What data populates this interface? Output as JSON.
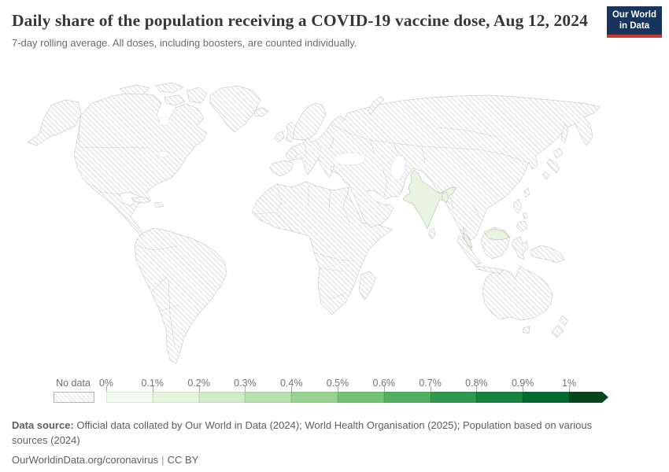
{
  "header": {
    "title": "Daily share of the population receiving a COVID-19 vaccine dose, Aug 12, 2024",
    "subtitle": "7-day rolling average. All doses, including boosters, are counted individually.",
    "logo": {
      "line1": "Our World",
      "line2": "in Data",
      "bg_color": "#17355c",
      "accent_color": "#c73a31"
    }
  },
  "map": {
    "no_data_style": "diagonal-hatch",
    "hatch_line_color": "#e0e0e0",
    "border_color": "#cdcdcd",
    "highlight_fill": "#e9f3e2",
    "highlighted_countries": [
      "India",
      "Bangladesh",
      "Malaysia"
    ]
  },
  "legend": {
    "no_data_label": "No data",
    "tick_labels": [
      "0%",
      "0.1%",
      "0.2%",
      "0.3%",
      "0.4%",
      "0.5%",
      "0.6%",
      "0.7%",
      "0.8%",
      "0.9%",
      "1%"
    ],
    "bin_colors": [
      "#f2faee",
      "#e5f4dd",
      "#d0ecc7",
      "#b6e0ac",
      "#97d291",
      "#73c276",
      "#50b05f",
      "#30984f",
      "#17823f",
      "#046a2f"
    ],
    "arrow_bin_color": "#07431d"
  },
  "footer": {
    "source_label": "Data source:",
    "source_text": "Official data collated by Our World in Data (2024); World Health Organisation (2025); Population based on various sources (2024)",
    "link": "OurWorldinData.org/coronavirus",
    "divider": "|",
    "license": "CC BY"
  },
  "chart_data": {
    "type": "choropleth_map",
    "title": "Daily share of the population receiving a COVID-19 vaccine dose, Aug 12, 2024",
    "subtitle": "7-day rolling average. All doses, including boosters, are counted individually.",
    "date_shown": "Aug 12, 2024",
    "unit": "%",
    "legend_ticks": [
      "0%",
      "0.1%",
      "0.2%",
      "0.3%",
      "0.4%",
      "0.5%",
      "0.6%",
      "0.7%",
      "0.8%",
      "0.9%",
      "1%"
    ],
    "legend_note": "stepped green gradient; arrow bin indicates values above 1%; hatched swatch means No data",
    "regions_with_data": [
      {
        "country": "India",
        "approx_value_bin": "0–0.1%"
      },
      {
        "country": "Bangladesh",
        "approx_value_bin": "0–0.1%"
      },
      {
        "country": "Malaysia",
        "approx_value_bin": "0–0.1%"
      }
    ],
    "all_other_countries": "No data (hatched)"
  }
}
